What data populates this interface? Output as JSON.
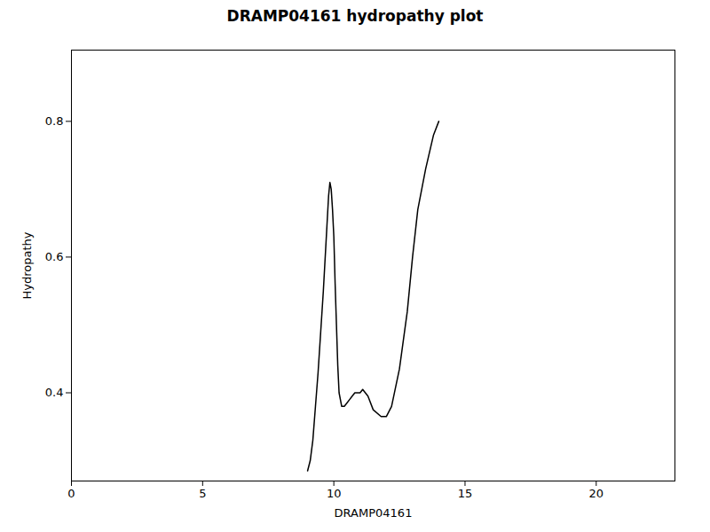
{
  "chart_data": {
    "type": "line",
    "title": "DRAMP04161 hydropathy plot",
    "xlabel": "DRAMP04161",
    "ylabel": "Hydropathy",
    "x": [
      9.0,
      9.1,
      9.2,
      9.3,
      9.4,
      9.5,
      9.6,
      9.7,
      9.8,
      9.85,
      9.9,
      9.95,
      10.0,
      10.05,
      10.1,
      10.15,
      10.2,
      10.3,
      10.4,
      10.5,
      10.6,
      10.7,
      10.8,
      10.9,
      11.0,
      11.1,
      11.2,
      11.3,
      11.5,
      11.8,
      12.0,
      12.2,
      12.5,
      12.8,
      13.0,
      13.2,
      13.5,
      13.8,
      14.0
    ],
    "values": [
      0.285,
      0.3,
      0.33,
      0.38,
      0.43,
      0.49,
      0.55,
      0.62,
      0.69,
      0.71,
      0.7,
      0.67,
      0.63,
      0.56,
      0.5,
      0.44,
      0.4,
      0.38,
      0.38,
      0.385,
      0.39,
      0.395,
      0.4,
      0.4,
      0.4,
      0.405,
      0.4,
      0.395,
      0.375,
      0.365,
      0.365,
      0.38,
      0.435,
      0.52,
      0.6,
      0.67,
      0.73,
      0.78,
      0.8
    ],
    "color": "#000000",
    "xlim": [
      0,
      23
    ],
    "ylim": [
      0.27,
      0.905
    ],
    "xticks": [
      0,
      5,
      10,
      15,
      20
    ],
    "yticks": [
      0.4,
      0.6,
      0.8
    ],
    "grid": false
  }
}
